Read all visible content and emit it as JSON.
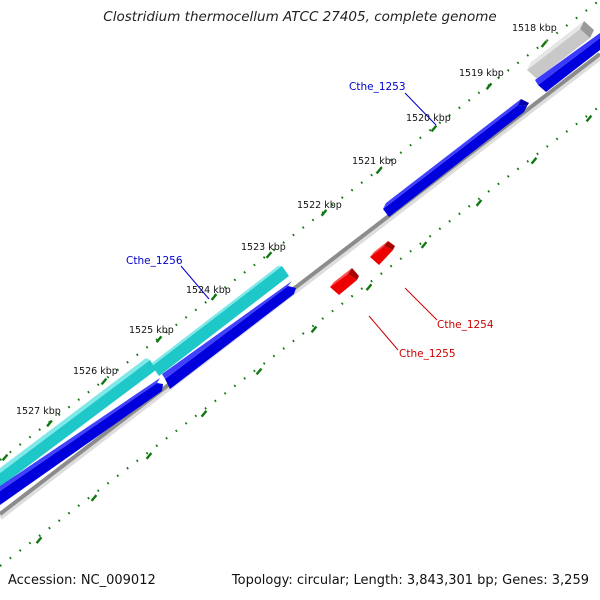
{
  "title": "Clostridium thermocellum ATCC 27405, complete genome",
  "footer": {
    "accession": "Accession: NC_009012",
    "summary": "Topology: circular; Length: 3,843,301 bp; Genes: 3,259"
  },
  "scale_labels": [
    "1518 kbp",
    "1519 kbp",
    "1520 kbp",
    "1521 kbp",
    "1522 kbp",
    "1523 kbp",
    "1524 kbp",
    "1525 kbp",
    "1526 kbp",
    "1527 kbp"
  ],
  "gene_labels": {
    "cthe_1253": "Cthe_1253",
    "cthe_1254": "Cthe_1254",
    "cthe_1255": "Cthe_1255",
    "cthe_1256": "Cthe_1256"
  },
  "colors": {
    "forward_cds": "#0000dd",
    "reverse_cds": "#ee0000",
    "rna_feature": "#1fc8c8",
    "other_feature": "#b0b0b0",
    "backbone": "#8c8c8c",
    "tick": "#117711",
    "forward_label": "#0000cc",
    "reverse_label": "#cc0000"
  }
}
